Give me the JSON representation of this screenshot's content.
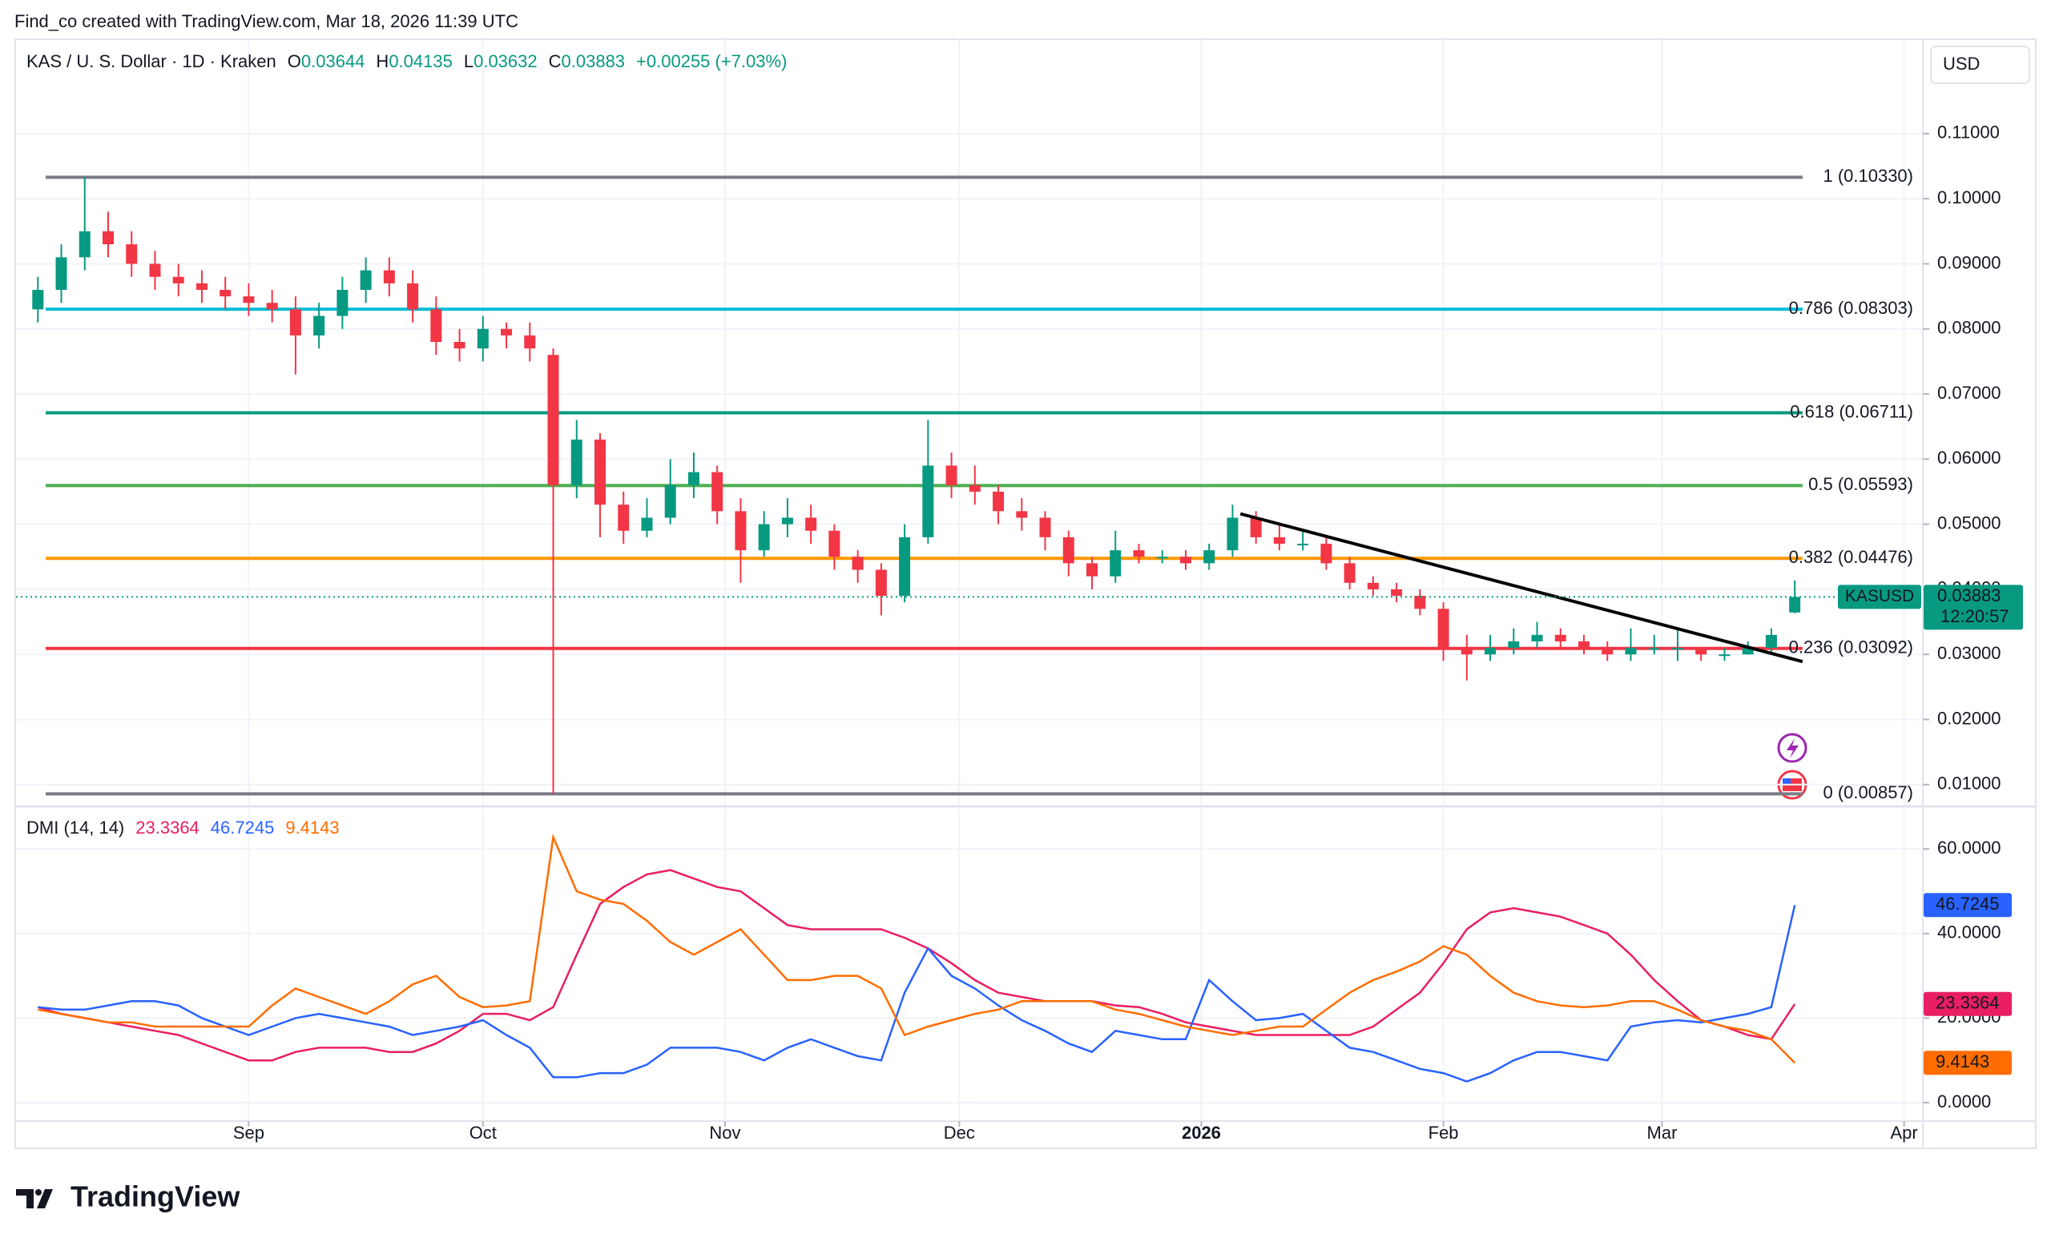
{
  "header": "Find_co created with TradingView.com, Mar 18, 2026 11:39 UTC",
  "logo": "TradingView",
  "chart_data": [
    {
      "type": "candlestick",
      "symbol": "KAS / U. S. Dollar · 1D · Kraken",
      "ohlc_letters": [
        "O",
        "H",
        "L",
        "C"
      ],
      "change": "+0.00255 (+7.03%)",
      "currency": "USD",
      "ticker": "KASUSD",
      "countdown": "12:20:57",
      "up_color": "#089981",
      "down_color": "#f23645",
      "xlim": [
        -29.8,
        214.4
      ],
      "ylim": [
        0.0069,
        0.1245
      ],
      "yticks": [
        {
          "value": 0.01,
          "label": "0.01000"
        },
        {
          "value": 0.02,
          "label": "0.02000"
        },
        {
          "value": 0.03,
          "label": "0.03000"
        },
        {
          "value": 0.04,
          "label": "0.04000"
        },
        {
          "value": 0.05,
          "label": "0.05000"
        },
        {
          "value": 0.06,
          "label": "0.06000"
        },
        {
          "value": 0.07,
          "label": "0.07000"
        },
        {
          "value": 0.08,
          "label": "0.08000"
        },
        {
          "value": 0.09,
          "label": "0.09000"
        },
        {
          "value": 0.1,
          "label": "0.10000"
        },
        {
          "value": 0.11,
          "label": "0.11000"
        }
      ],
      "x": [
        -27,
        -24,
        -21,
        -18,
        -15,
        -12,
        -9,
        -6,
        -3,
        0,
        3,
        6,
        9,
        12,
        15,
        18,
        21,
        24,
        27,
        30,
        33,
        36,
        39,
        42,
        45,
        48,
        51,
        54,
        57,
        60,
        63,
        66,
        69,
        72,
        75,
        78,
        81,
        84,
        87,
        90,
        93,
        96,
        99,
        102,
        105,
        108,
        111,
        114,
        117,
        120,
        123,
        126,
        129,
        132,
        135,
        138,
        141,
        144,
        147,
        150,
        153,
        156,
        159,
        162,
        165,
        168,
        171,
        174,
        177,
        180,
        183,
        186,
        189,
        192,
        195,
        198
      ],
      "open": [
        0.083,
        0.086,
        0.091,
        0.095,
        0.093,
        0.09,
        0.088,
        0.087,
        0.086,
        0.085,
        0.084,
        0.083,
        0.079,
        0.082,
        0.086,
        0.089,
        0.087,
        0.083,
        0.078,
        0.077,
        0.08,
        0.079,
        0.076,
        0.056,
        0.063,
        0.053,
        0.049,
        0.051,
        0.056,
        0.058,
        0.052,
        0.046,
        0.05,
        0.051,
        0.049,
        0.045,
        0.043,
        0.039,
        0.048,
        0.059,
        0.056,
        0.055,
        0.052,
        0.051,
        0.048,
        0.044,
        0.042,
        0.046,
        0.045,
        0.045,
        0.044,
        0.046,
        0.051,
        0.048,
        0.047,
        0.047,
        0.044,
        0.041,
        0.04,
        0.039,
        0.037,
        0.031,
        0.03,
        0.031,
        0.032,
        0.033,
        0.032,
        0.031,
        0.03,
        0.031,
        0.031,
        0.031,
        0.03,
        0.03,
        0.031,
        0.03644
      ],
      "high": [
        0.088,
        0.093,
        0.1033,
        0.098,
        0.095,
        0.092,
        0.09,
        0.089,
        0.088,
        0.087,
        0.086,
        0.085,
        0.084,
        0.088,
        0.091,
        0.091,
        0.089,
        0.085,
        0.08,
        0.082,
        0.081,
        0.081,
        0.077,
        0.066,
        0.064,
        0.055,
        0.054,
        0.06,
        0.061,
        0.059,
        0.054,
        0.052,
        0.054,
        0.053,
        0.05,
        0.046,
        0.044,
        0.05,
        0.066,
        0.061,
        0.059,
        0.056,
        0.054,
        0.052,
        0.049,
        0.045,
        0.049,
        0.047,
        0.046,
        0.046,
        0.047,
        0.053,
        0.052,
        0.05,
        0.049,
        0.048,
        0.045,
        0.042,
        0.041,
        0.04,
        0.038,
        0.033,
        0.033,
        0.034,
        0.035,
        0.034,
        0.033,
        0.032,
        0.034,
        0.033,
        0.034,
        0.031,
        0.031,
        0.032,
        0.034,
        0.04135
      ],
      "low": [
        0.081,
        0.084,
        0.089,
        0.091,
        0.088,
        0.086,
        0.085,
        0.084,
        0.083,
        0.082,
        0.081,
        0.073,
        0.077,
        0.08,
        0.084,
        0.085,
        0.081,
        0.076,
        0.075,
        0.075,
        0.077,
        0.075,
        0.00857,
        0.054,
        0.048,
        0.047,
        0.048,
        0.05,
        0.054,
        0.05,
        0.041,
        0.045,
        0.048,
        0.047,
        0.043,
        0.041,
        0.036,
        0.038,
        0.047,
        0.054,
        0.053,
        0.05,
        0.049,
        0.046,
        0.042,
        0.04,
        0.041,
        0.044,
        0.044,
        0.043,
        0.043,
        0.045,
        0.047,
        0.046,
        0.046,
        0.043,
        0.04,
        0.039,
        0.038,
        0.036,
        0.029,
        0.026,
        0.029,
        0.03,
        0.031,
        0.031,
        0.03,
        0.029,
        0.029,
        0.03,
        0.029,
        0.029,
        0.029,
        0.03,
        0.03,
        0.03632
      ],
      "close": [
        0.086,
        0.091,
        0.095,
        0.093,
        0.09,
        0.088,
        0.087,
        0.086,
        0.085,
        0.084,
        0.083,
        0.079,
        0.082,
        0.086,
        0.089,
        0.087,
        0.083,
        0.078,
        0.077,
        0.08,
        0.079,
        0.077,
        0.056,
        0.063,
        0.053,
        0.049,
        0.051,
        0.056,
        0.058,
        0.052,
        0.046,
        0.05,
        0.051,
        0.049,
        0.045,
        0.043,
        0.039,
        0.048,
        0.059,
        0.056,
        0.055,
        0.052,
        0.051,
        0.048,
        0.044,
        0.042,
        0.046,
        0.045,
        0.045,
        0.044,
        0.046,
        0.051,
        0.048,
        0.047,
        0.047,
        0.044,
        0.041,
        0.04,
        0.039,
        0.037,
        0.031,
        0.03,
        0.031,
        0.032,
        0.033,
        0.032,
        0.031,
        0.03,
        0.031,
        0.031,
        0.031,
        0.03,
        0.03,
        0.031,
        0.033,
        0.03883
      ],
      "fib_levels": [
        {
          "value": 0.1033,
          "label": "1 (0.10330)",
          "color": "#787b86"
        },
        {
          "value": 0.08303,
          "label": "0.786 (0.08303)",
          "color": "#00bcd4"
        },
        {
          "value": 0.06711,
          "label": "0.618 (0.06711)",
          "color": "#089981"
        },
        {
          "value": 0.05593,
          "label": "0.5 (0.05593)",
          "color": "#4caf50"
        },
        {
          "value": 0.04476,
          "label": "0.382 (0.04476)",
          "color": "#ff9800"
        },
        {
          "value": 0.03092,
          "label": "0.236 (0.03092)",
          "color": "#f23645"
        },
        {
          "value": 0.00857,
          "label": "0 (0.00857)",
          "color": "#787b86"
        }
      ],
      "trendline": {
        "x": [
          127,
          199
        ],
        "values": [
          0.0516,
          0.0289
        ],
        "color": "#000000"
      }
    },
    {
      "type": "line",
      "title": "DMI (14, 14)",
      "xlim": [
        -29.8,
        214.4
      ],
      "ylim": [
        -4.35,
        69.5
      ],
      "yticks": [
        {
          "value": 0,
          "label": "0.0000"
        },
        {
          "value": 20,
          "label": "20.0000"
        },
        {
          "value": 40,
          "label": "40.0000"
        },
        {
          "value": 60,
          "label": "60.0000"
        }
      ],
      "xticks": [
        {
          "value": 0,
          "label": "Sep"
        },
        {
          "value": 30,
          "label": "Oct"
        },
        {
          "value": 61,
          "label": "Nov"
        },
        {
          "value": 91,
          "label": "Dec"
        },
        {
          "value": 122,
          "label": "2026"
        },
        {
          "value": 153,
          "label": "Feb"
        },
        {
          "value": 181,
          "label": "Mar"
        },
        {
          "value": 212,
          "label": "Apr"
        }
      ],
      "x": [
        -27,
        -24,
        -21,
        -18,
        -15,
        -12,
        -9,
        -6,
        -3,
        0,
        3,
        6,
        9,
        12,
        15,
        18,
        21,
        24,
        27,
        30,
        33,
        36,
        39,
        42,
        45,
        48,
        51,
        54,
        57,
        60,
        63,
        66,
        69,
        72,
        75,
        78,
        81,
        84,
        87,
        90,
        93,
        96,
        99,
        102,
        105,
        108,
        111,
        114,
        117,
        120,
        123,
        126,
        129,
        132,
        135,
        138,
        141,
        144,
        147,
        150,
        153,
        156,
        159,
        162,
        165,
        168,
        171,
        174,
        177,
        180,
        183,
        186,
        189,
        192,
        195,
        198
      ],
      "series": [
        {
          "color": "#e91e63",
          "values": [
            22.6,
            21,
            20,
            19,
            18,
            17,
            16,
            14,
            12,
            10,
            10,
            12,
            13,
            13,
            13,
            12,
            12,
            14,
            17,
            21,
            21,
            19.5,
            22.6,
            35,
            47,
            51,
            54,
            55,
            53,
            51,
            50,
            46,
            42,
            41,
            41,
            41,
            41,
            39,
            36.5,
            33,
            29,
            26,
            25,
            24,
            24,
            24,
            23,
            22.6,
            21,
            19,
            18,
            17,
            16,
            16,
            16,
            16,
            16,
            18,
            22,
            26,
            33,
            41,
            45,
            46,
            45,
            44,
            42,
            40,
            35,
            29,
            24,
            19.5,
            18,
            16,
            15,
            23.3364
          ]
        },
        {
          "color": "#2962ff",
          "values": [
            22.6,
            22,
            22,
            23,
            24,
            24,
            23,
            20,
            18,
            16,
            18,
            20,
            21,
            20,
            19,
            18,
            16,
            17,
            18,
            19.5,
            16,
            13,
            6,
            6,
            7,
            7,
            9,
            13,
            13,
            13,
            12,
            10,
            13,
            15,
            13,
            11,
            10,
            26,
            36.5,
            30,
            27,
            23,
            19.5,
            17,
            14,
            12,
            17,
            16,
            15,
            15,
            29,
            24,
            19.5,
            20,
            21,
            17,
            13,
            12,
            10,
            8,
            7,
            5,
            7,
            10,
            12,
            12,
            11,
            10,
            18,
            19,
            19.5,
            19,
            20,
            21,
            22.6,
            46.7245
          ]
        },
        {
          "color": "#ff6d00",
          "values": [
            22,
            21,
            20,
            19,
            19,
            18,
            18,
            18,
            18,
            18,
            23,
            27,
            25,
            23,
            21,
            24,
            28,
            30,
            25,
            22.6,
            23,
            24,
            62.8,
            50,
            48,
            47,
            43,
            38,
            35,
            38,
            41,
            35,
            29,
            29,
            30,
            30,
            27,
            16,
            18,
            19.5,
            21,
            22,
            24,
            24,
            24,
            24,
            22,
            21,
            19.5,
            18,
            17,
            16,
            17,
            18,
            18,
            22,
            26,
            29,
            31,
            33.4,
            37,
            35,
            30,
            26,
            24,
            23,
            22.6,
            23,
            24,
            24,
            22,
            19.5,
            18,
            17,
            15,
            9.4143
          ]
        }
      ]
    }
  ]
}
